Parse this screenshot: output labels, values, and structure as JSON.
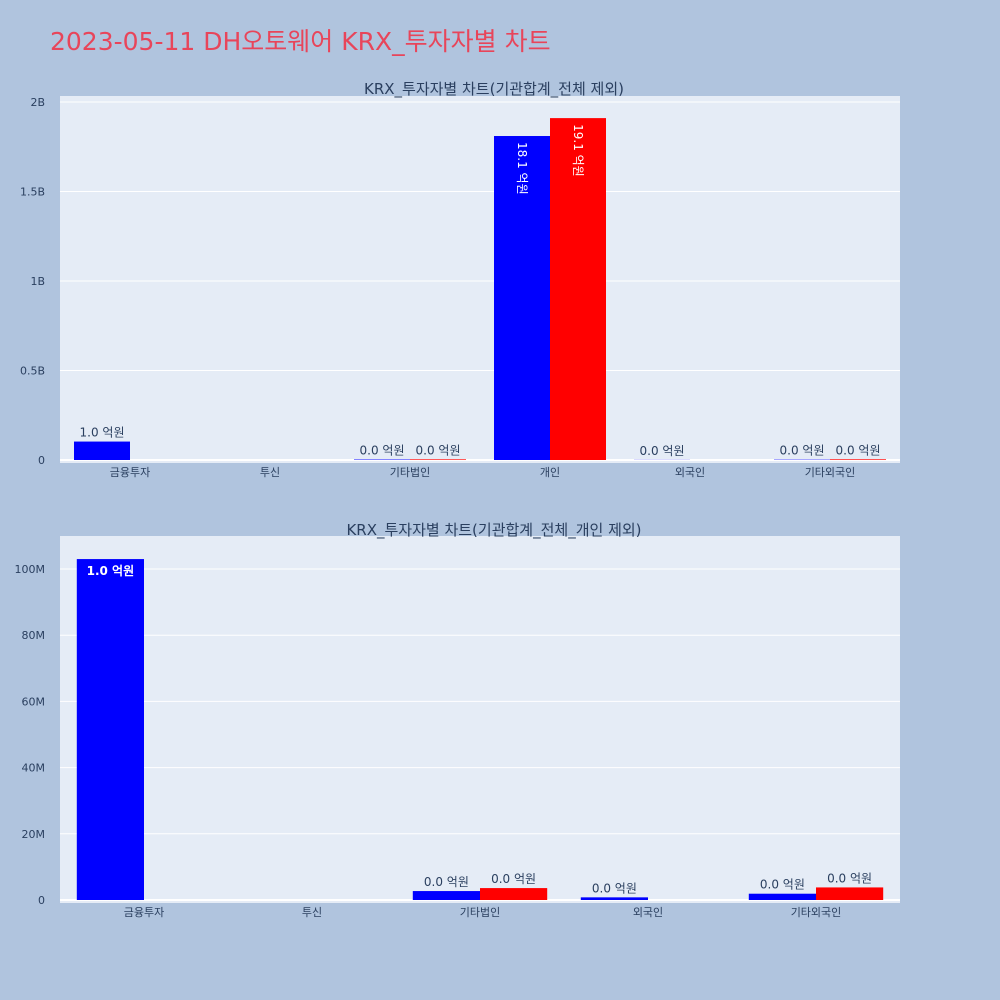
{
  "page_title": "2023-05-11 DH오토웨어 KRX_투자자별 차트",
  "chart_data": [
    {
      "type": "bar",
      "title": "KRX_투자자별 차트(기관합계_전체 제외)",
      "categories": [
        "금융투자",
        "투신",
        "기타법인",
        "개인",
        "외국인",
        "기타외국인"
      ],
      "ylim": [
        0,
        2000000000
      ],
      "yticks": [
        0,
        500000000,
        1000000000,
        1500000000,
        2000000000
      ],
      "ytick_labels": [
        "0",
        "0.5B",
        "1B",
        "1.5B",
        "2B"
      ],
      "grid": true,
      "series": [
        {
          "color": "#0000ff",
          "values": [
            103000000,
            0,
            2700000,
            1810000000,
            800000,
            1900000
          ],
          "labels": [
            "1.0 억원",
            "",
            "0.0 억원",
            "18.1 억원",
            "0.0 억원",
            "0.0 억원"
          ]
        },
        {
          "color": "#ff0000",
          "values": [
            0,
            0,
            3600000,
            1910000000,
            0,
            3800000
          ],
          "labels": [
            "",
            "",
            "0.0 억원",
            "19.1 억원",
            "",
            "0.0 억원"
          ]
        }
      ]
    },
    {
      "type": "bar",
      "title": "KRX_투자자별 차트(기관합계_전체_개인 제외)",
      "categories": [
        "금융투자",
        "투신",
        "기타법인",
        "외국인",
        "기타외국인"
      ],
      "ylim": [
        0,
        110000000
      ],
      "yticks": [
        0,
        20000000,
        40000000,
        60000000,
        80000000,
        100000000
      ],
      "ytick_labels": [
        "0",
        "20M",
        "40M",
        "60M",
        "80M",
        "100M"
      ],
      "grid": true,
      "series": [
        {
          "color": "#0000ff",
          "values": [
            103000000,
            0,
            2700000,
            800000,
            1900000
          ],
          "labels": [
            "1.0 억원",
            "",
            "0.0 억원",
            "0.0 억원",
            "0.0 억원"
          ]
        },
        {
          "color": "#ff0000",
          "values": [
            0,
            0,
            3600000,
            0,
            3800000
          ],
          "labels": [
            "",
            "",
            "0.0 억원",
            "",
            "0.0 억원"
          ]
        }
      ]
    }
  ]
}
